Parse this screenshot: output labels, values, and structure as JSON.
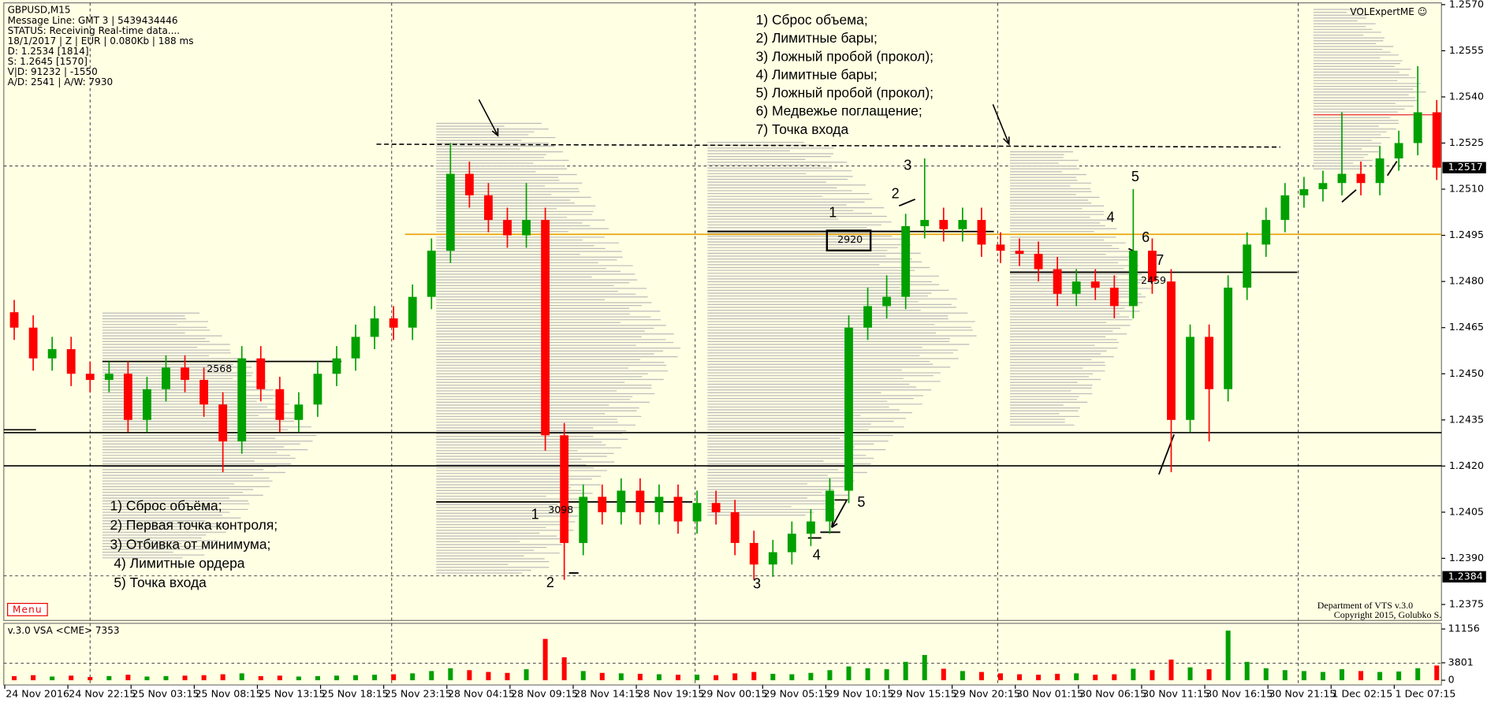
{
  "chart_data": {
    "type": "candlestick",
    "title": "GBPUSD,M15",
    "info_lines": [
      "Message Line: GMT 3 | 5439434446",
      "STATUS:  Receiving Real-time data....",
      "18/1/2017 | Z | EUR | 0.080Kb | 188 ms",
      "D: 1.2534  [1814]",
      "S: 1.2645  [1570]",
      "V|D: 91232 | -1550",
      "A/D: 2541 | A/W: 7930"
    ],
    "brand": "VOLExpertME ☺",
    "menu": "Menu",
    "footer": [
      "Department of VTS  v.3.0",
      "Copyright 2015, Golubko S."
    ],
    "indicator_label": "v.3.0 VSA <CME> 7353",
    "notes_top": [
      "1) Сброс объема;",
      "2) Лимитные бары;",
      "3) Ложный пробой (прокол);",
      "4) Лимитные бары;",
      "5) Ложный пробой (прокол);",
      "6) Медвежье поглащение;",
      "7) Точка входа"
    ],
    "notes_bottom": [
      "1) Сброс объёма;",
      "2) Первая точка контроля;",
      "3) Отбивка от минимума;",
      "4) Лимитные ордера",
      "5) Точка входа"
    ],
    "chart_labels": [
      "2568",
      "1",
      "3098",
      "2",
      "3",
      "4",
      "5",
      "1",
      "2920",
      "2",
      "3",
      "4",
      "5",
      "6",
      "7",
      "2459"
    ],
    "open": [
      1.247,
      1.2465,
      1.2455,
      1.2458,
      1.245,
      1.2448,
      1.245,
      1.2435,
      1.2445,
      1.2452,
      1.2448,
      1.244,
      1.2428,
      1.2455,
      1.2445,
      1.2435,
      1.244,
      1.245,
      1.2455,
      1.2462,
      1.2468,
      1.2465,
      1.2475,
      1.249,
      1.2515,
      1.2508,
      1.25,
      1.2495,
      1.25,
      1.243,
      1.2395,
      1.241,
      1.2405,
      1.2412,
      1.2405,
      1.241,
      1.2402,
      1.2408,
      1.2405,
      1.2395,
      1.2388,
      1.2392,
      1.2398,
      1.2402,
      1.2412,
      1.2465,
      1.2472,
      1.2475,
      1.2498,
      1.25,
      1.2497,
      1.25,
      1.2492,
      1.249,
      1.2489,
      1.2484,
      1.2476,
      1.248,
      1.2478,
      1.2472,
      1.249,
      1.248,
      1.2435,
      1.2462,
      1.2445,
      1.2478,
      1.2492,
      1.25,
      1.2508,
      1.251,
      1.2512,
      1.2515,
      1.2512,
      1.252,
      1.2525,
      1.2535
    ],
    "high": [
      1.2474,
      1.2469,
      1.2462,
      1.2462,
      1.2454,
      1.2454,
      1.2454,
      1.2449,
      1.2456,
      1.2456,
      1.2452,
      1.2444,
      1.2459,
      1.2459,
      1.2449,
      1.2444,
      1.2454,
      1.2459,
      1.2466,
      1.2472,
      1.2472,
      1.2479,
      1.2494,
      1.2525,
      1.2519,
      1.2512,
      1.2504,
      1.2512,
      1.2504,
      1.2434,
      1.2414,
      1.2414,
      1.2416,
      1.2416,
      1.2414,
      1.2414,
      1.2412,
      1.2412,
      1.2409,
      1.2399,
      1.2396,
      1.2402,
      1.2406,
      1.2416,
      1.2469,
      1.2478,
      1.2482,
      1.2502,
      1.252,
      1.2504,
      1.2504,
      1.2504,
      1.2496,
      1.2494,
      1.2493,
      1.2488,
      1.2484,
      1.2484,
      1.2482,
      1.251,
      1.2494,
      1.2484,
      1.2466,
      1.2466,
      1.2482,
      1.2496,
      1.2504,
      1.2512,
      1.2514,
      1.2516,
      1.2535,
      1.2519,
      1.2524,
      1.2529,
      1.255,
      1.2539
    ],
    "low": [
      1.2461,
      1.2451,
      1.2451,
      1.2446,
      1.2444,
      1.2444,
      1.2431,
      1.2431,
      1.2441,
      1.2444,
      1.2436,
      1.2418,
      1.2424,
      1.2441,
      1.2431,
      1.2431,
      1.2436,
      1.2446,
      1.2451,
      1.2458,
      1.2461,
      1.2461,
      1.2471,
      1.2486,
      1.2504,
      1.2496,
      1.2491,
      1.2491,
      1.2425,
      1.2383,
      1.2391,
      1.2401,
      1.2401,
      1.2401,
      1.2401,
      1.2398,
      1.2398,
      1.2401,
      1.2391,
      1.2383,
      1.2384,
      1.2388,
      1.2394,
      1.2398,
      1.2408,
      1.2461,
      1.2468,
      1.2471,
      1.2494,
      1.2493,
      1.2493,
      1.2488,
      1.2486,
      1.2485,
      1.248,
      1.2472,
      1.2472,
      1.2474,
      1.2468,
      1.2468,
      1.2476,
      1.2418,
      1.2431,
      1.2428,
      1.2441,
      1.2474,
      1.2488,
      1.2496,
      1.2504,
      1.2506,
      1.2508,
      1.2508,
      1.2508,
      1.2516,
      1.2521,
      1.2513
    ],
    "close": [
      1.2465,
      1.2455,
      1.2458,
      1.245,
      1.2448,
      1.245,
      1.2435,
      1.2445,
      1.2452,
      1.2448,
      1.244,
      1.2428,
      1.2455,
      1.2445,
      1.2435,
      1.244,
      1.245,
      1.2455,
      1.2462,
      1.2468,
      1.2465,
      1.2475,
      1.249,
      1.2515,
      1.2508,
      1.25,
      1.2495,
      1.25,
      1.243,
      1.2395,
      1.241,
      1.2405,
      1.2412,
      1.2405,
      1.241,
      1.2402,
      1.2408,
      1.2405,
      1.2395,
      1.2388,
      1.2392,
      1.2398,
      1.2402,
      1.2412,
      1.2465,
      1.2472,
      1.2475,
      1.2498,
      1.25,
      1.2497,
      1.25,
      1.2492,
      1.249,
      1.2489,
      1.2484,
      1.2476,
      1.248,
      1.2478,
      1.2472,
      1.249,
      1.248,
      1.2435,
      1.2462,
      1.2445,
      1.2478,
      1.2492,
      1.25,
      1.2508,
      1.251,
      1.2512,
      1.2515,
      1.2512,
      1.252,
      1.2525,
      1.2535,
      1.2517
    ],
    "up_color": "#00a000",
    "down_color": "#ff0000",
    "ylim": [
      1.23695,
      1.25715
    ],
    "yticks": [
      {
        "value": 1.257,
        "label": "1.2570"
      },
      1.2555,
      {
        "value": 1.254,
        "label": "1.2540"
      },
      1.2525,
      {
        "value": 1.251,
        "label": "1.2510"
      },
      1.2495,
      {
        "value": 1.248,
        "label": "1.2480"
      },
      1.2465,
      {
        "value": 1.245,
        "label": "1.2450"
      },
      1.2435,
      {
        "value": 1.242,
        "label": "1.2420"
      },
      1.2405,
      {
        "value": 1.239,
        "label": "1.2390"
      },
      1.2375
    ],
    "price_marks": [
      1.2517,
      1.2384
    ],
    "categories": [
      "24 Nov 2016",
      "24 Nov 22:15",
      "25 Nov 03:15",
      "25 Nov 08:15",
      "25 Nov 13:15",
      "25 Nov 18:15",
      "25 Nov 23:15",
      "28 Nov 04:15",
      "28 Nov 09:15",
      "28 Nov 14:15",
      "28 Nov 19:15",
      "29 Nov 00:15",
      "29 Nov 05:15",
      "29 Nov 10:15",
      "29 Nov 15:15",
      "29 Nov 20:15",
      "30 Nov 01:15",
      "30 Nov 06:15",
      "30 Nov 11:15",
      "30 Nov 16:15",
      "30 Nov 21:15",
      "1 Dec 02:15",
      "1 Dec 07:15"
    ],
    "volume": {
      "values": [
        900,
        1100,
        800,
        1000,
        700,
        900,
        1200,
        800,
        900,
        1000,
        1100,
        1300,
        1500,
        900,
        1000,
        800,
        900,
        1000,
        1100,
        1200,
        1300,
        1500,
        2000,
        2600,
        2200,
        1800,
        1600,
        2400,
        9000,
        5000,
        2000,
        1600,
        1500,
        1400,
        1300,
        1200,
        1200,
        1100,
        1500,
        1800,
        1400,
        1300,
        1600,
        2200,
        3000,
        2600,
        2400,
        4000,
        5500,
        2500,
        2000,
        1800,
        1500,
        1300,
        1200,
        1400,
        1500,
        1200,
        1300,
        2500,
        2200,
        4500,
        2800,
        2400,
        10800,
        4000,
        2600,
        2200,
        2000,
        1800,
        2400,
        2000,
        1800,
        1900,
        2600,
        3200
      ],
      "color": "#00a000",
      "ylim": [
        0,
        11156
      ],
      "yticks": [
        0,
        3801,
        11156
      ]
    }
  }
}
